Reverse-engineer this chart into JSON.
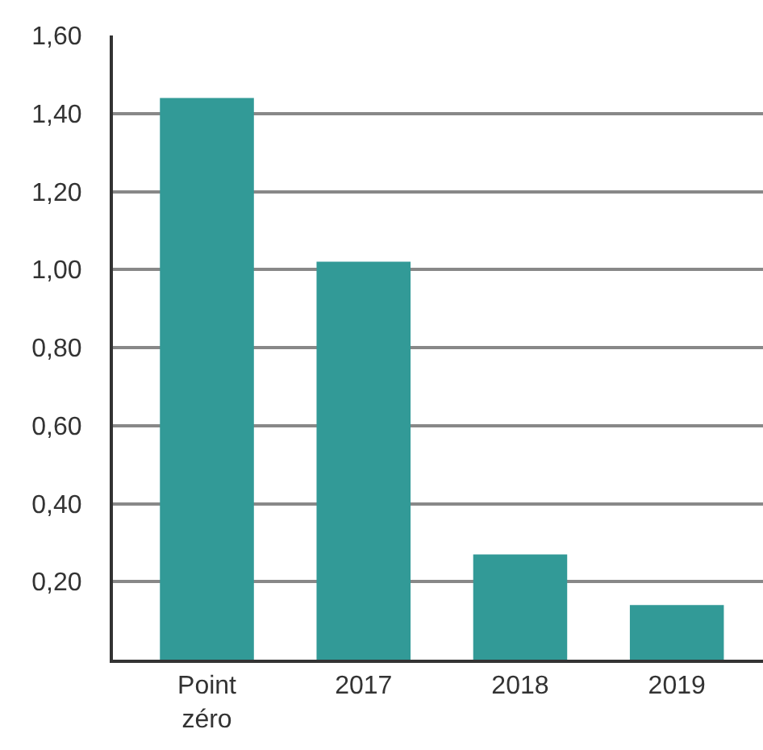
{
  "chart_data": {
    "type": "bar",
    "categories": [
      "Point zéro",
      "2017",
      "2018",
      "2019"
    ],
    "values": [
      1.44,
      1.02,
      0.27,
      0.14
    ],
    "color": "#329a97",
    "ylim": [
      0,
      1.6
    ],
    "yticks": [
      {
        "value": 0.2,
        "label": "0,20"
      },
      {
        "value": 0.4,
        "label": "0,40"
      },
      {
        "value": 0.6,
        "label": "0,60"
      },
      {
        "value": 0.8,
        "label": "0,80"
      },
      {
        "value": 1.0,
        "label": "1,00"
      },
      {
        "value": 1.2,
        "label": "1,20"
      },
      {
        "value": 1.4,
        "label": "1,40"
      },
      {
        "value": 1.6,
        "label": "1,60"
      }
    ],
    "grid": "y"
  }
}
